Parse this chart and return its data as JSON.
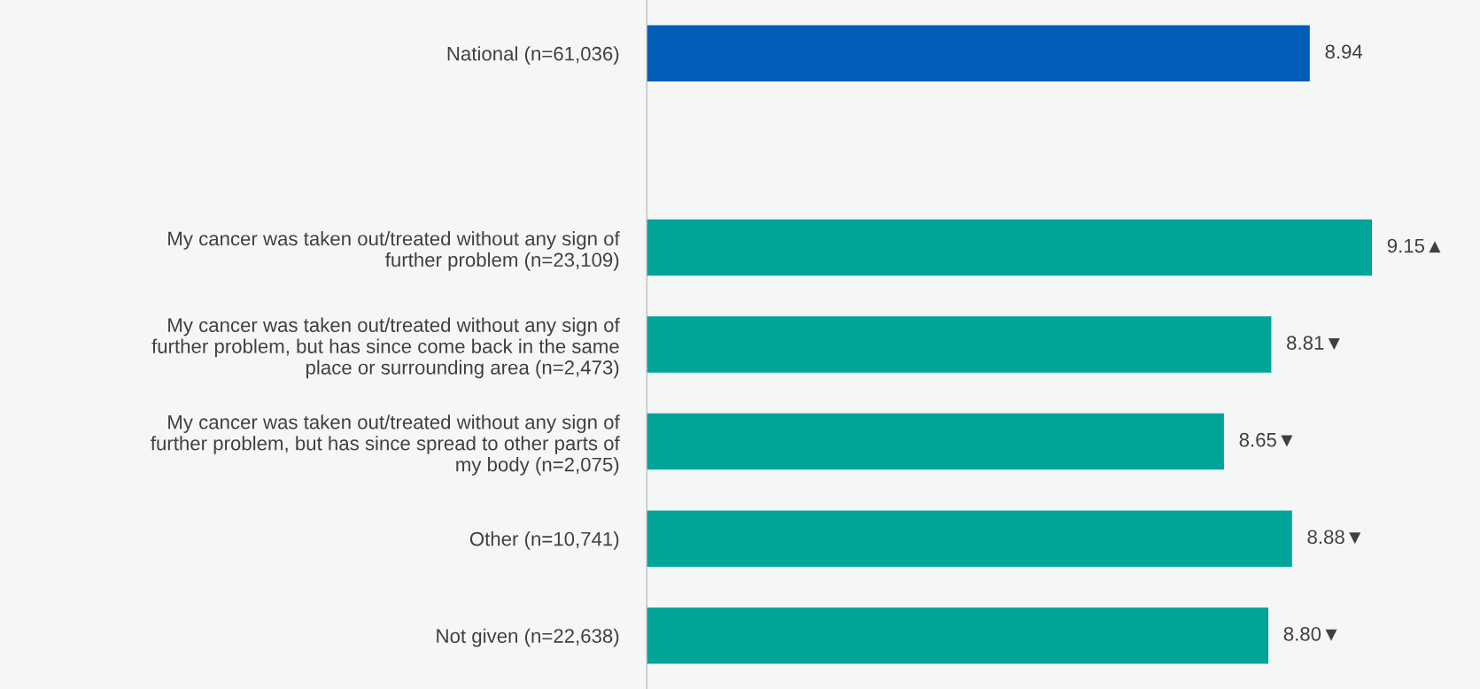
{
  "chart_data": {
    "type": "bar",
    "orientation": "horizontal",
    "categories": [
      "National (n=61,036)",
      null,
      "My cancer was taken out/treated without any sign of\nfurther problem (n=23,109)",
      "My cancer was taken out/treated without any sign of\nfurther problem, but has since come back in the same\nplace or surrounding area (n=2,473)",
      "My cancer was taken out/treated without any sign of\nfurther problem, but has since spread to other parts of\nmy body (n=2,075)",
      "Other (n=10,741)",
      "Not given (n=22,638)"
    ],
    "values": [
      8.94,
      null,
      9.15,
      8.81,
      8.65,
      8.88,
      8.8
    ],
    "colors": [
      "#005eb8",
      null,
      "#00a499",
      "#00a499",
      "#00a499",
      "#00a499",
      "#00a499"
    ],
    "value_labels": [
      "8.94",
      null,
      "9.15▲",
      "8.81▼",
      "8.65▼",
      "8.88▼",
      "8.80▼"
    ],
    "xlim": [
      6.7,
      9.5
    ],
    "tick_labels": "y",
    "grid": false,
    "legend": false
  }
}
